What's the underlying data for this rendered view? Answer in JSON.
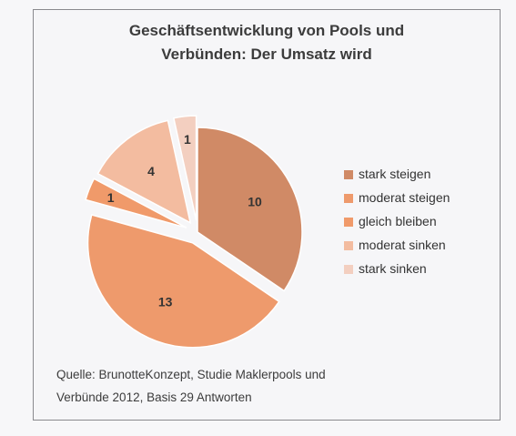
{
  "chart_data": {
    "type": "pie",
    "title_lines": [
      "Geschäftsentwicklung von Pools und",
      "Verbünden: Der Umsatz wird"
    ],
    "categories": [
      "stark steigen",
      "moderat steigen",
      "gleich bleiben",
      "moderat sinken",
      "stark sinken"
    ],
    "values": [
      10,
      13,
      1,
      4,
      1
    ],
    "colors": [
      "#d08a66",
      "#ee9a6c",
      "#f09a6a",
      "#f3bca0",
      "#f3cfc0"
    ],
    "exploded": [
      false,
      true,
      true,
      true,
      true
    ],
    "data_labels": [
      "10",
      "13",
      "1",
      "4",
      "1"
    ],
    "legend_position": "right",
    "source_lines": [
      "Quelle: BrunotteKonzept,  Studie Maklerpools und",
      "Verbünde 2012, Basis 29 Antworten"
    ]
  }
}
